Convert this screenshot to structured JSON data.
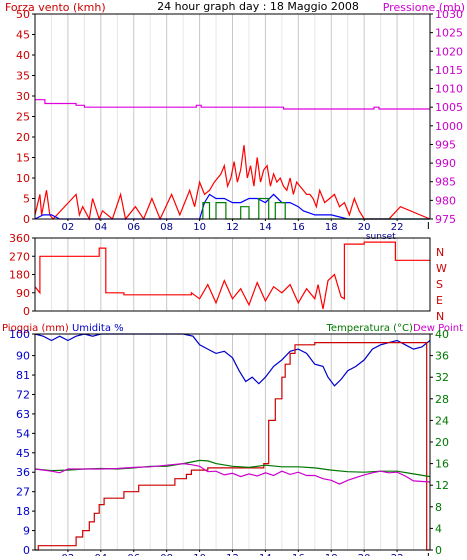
{
  "colors": {
    "background": "#ffffff",
    "frame": "#000000",
    "grid": "#d4d4d4",
    "wind": "#ff0000",
    "wind_avg": "#0000ff",
    "wind_green": "#008000",
    "pressure": "#e000e0",
    "direction": "#ff0000",
    "rain": "#cc0000",
    "humidity": "#0000cc",
    "temperature": "#007700",
    "dewpoint": "#cc00cc",
    "hour_labels": "#000088"
  },
  "header": {
    "left": "Forza vento (kmh)",
    "center": "24 hour graph day : 18 Maggio 2008",
    "right": "Pressione (mb)"
  },
  "x_labels": [
    "02",
    "04",
    "06",
    "08",
    "10",
    "12",
    "14",
    "16",
    "18",
    "20",
    "22"
  ],
  "sunset_label": "sunset",
  "chart_data": [
    {
      "type": "line",
      "title": "24 hour graph day : 18 Maggio 2008",
      "x_unit": "hour",
      "xlim": [
        0,
        24
      ],
      "left_axis": {
        "label": "Forza vento (kmh)",
        "ticks": [
          0,
          5,
          10,
          15,
          20,
          25,
          30,
          35,
          40,
          45,
          50
        ],
        "ylim": [
          0,
          50
        ]
      },
      "right_axis": {
        "label": "Pressione (mb)",
        "ticks": [
          975,
          980,
          985,
          990,
          995,
          1000,
          1005,
          1010,
          1015,
          1020,
          1025,
          1030
        ],
        "ylim": [
          975,
          1030
        ]
      },
      "series": [
        {
          "axis": "right",
          "color": "#e000e0",
          "x": [
            0,
            0.6,
            0.6,
            2.5,
            2.5,
            3,
            3,
            9.8,
            9.8,
            10.1,
            10.1,
            15.1,
            15.1,
            20.6,
            20.6,
            20.9,
            20.9,
            24
          ],
          "y": [
            1007,
            1007,
            1006,
            1006,
            1005.5,
            1005.5,
            1005,
            1005,
            1005.5,
            1005.5,
            1005,
            1005,
            1004.5,
            1004.5,
            1005,
            1005,
            1004.5,
            1004.5
          ]
        },
        {
          "axis": "left",
          "color": "#ff0000",
          "x": [
            0,
            0.3,
            0.4,
            0.5,
            0.7,
            0.9,
            1.1,
            2.5,
            2.7,
            2.9,
            3.3,
            3.5,
            3.9,
            4.1,
            4.7,
            5.2,
            5.5,
            6.1,
            6.6,
            7.1,
            7.6,
            8.3,
            8.8,
            9.4,
            9.7,
            10.0,
            10.3,
            10.6,
            10.9,
            11.1,
            11.3,
            11.5,
            11.7,
            11.9,
            12.1,
            12.3,
            12.5,
            12.7,
            12.9,
            13.1,
            13.3,
            13.5,
            13.7,
            13.9,
            14.1,
            14.3,
            14.5,
            14.7,
            14.9,
            15.1,
            15.3,
            15.5,
            15.7,
            15.9,
            16.1,
            16.3,
            16.5,
            16.7,
            16.9,
            17.1,
            17.3,
            17.6,
            17.9,
            18.2,
            18.5,
            18.8,
            19.1,
            19.4,
            19.7,
            20.0,
            21.5,
            22.2,
            24
          ],
          "y": [
            1,
            6,
            1,
            3,
            7,
            1,
            0,
            6,
            1,
            3,
            0,
            5,
            0,
            2,
            0,
            6,
            0,
            3,
            0,
            5,
            0,
            6,
            1,
            7,
            3,
            9,
            6,
            7,
            9,
            10,
            11,
            13,
            8,
            10,
            14,
            9,
            12,
            18,
            10,
            13,
            8,
            15,
            9,
            12,
            13,
            8,
            11,
            9,
            10,
            8,
            7,
            10,
            6,
            9,
            8,
            7,
            6,
            6,
            5,
            3,
            7,
            4,
            5,
            6,
            3,
            4,
            1,
            5,
            2,
            0,
            0,
            3,
            0
          ]
        },
        {
          "axis": "left",
          "color": "#0000ff",
          "x": [
            0,
            0.5,
            1,
            1.5,
            10,
            10.3,
            10.6,
            11,
            11.5,
            12,
            12.5,
            13,
            13.5,
            14,
            14.5,
            15,
            15.5,
            16,
            16.3,
            17,
            18,
            19,
            20,
            24
          ],
          "y": [
            0,
            1,
            1,
            0,
            0,
            4,
            6,
            5,
            5,
            4,
            4,
            5,
            5,
            4,
            6,
            4,
            4,
            3,
            2,
            1,
            1,
            0,
            0,
            0
          ]
        },
        {
          "axis": "left",
          "color": "#008000",
          "x": [
            10,
            10.2,
            10.2,
            10.6,
            10.6,
            11,
            11,
            11.6,
            11.6,
            12.5,
            12.5,
            13,
            13,
            13.6,
            13.6,
            14.2,
            14.2,
            14.6,
            14.6,
            15.2,
            15.2,
            16,
            16,
            24
          ],
          "y": [
            0,
            0,
            4,
            4,
            0,
            0,
            4,
            4,
            0,
            0,
            3,
            3,
            0,
            0,
            5,
            5,
            0,
            0,
            4,
            4,
            0,
            0,
            0,
            0
          ]
        }
      ]
    },
    {
      "type": "line",
      "title": "",
      "x_unit": "hour",
      "xlim": [
        0,
        24
      ],
      "left_axis": {
        "label": "",
        "ticks": [
          0,
          90,
          180,
          270,
          360
        ],
        "ylim": [
          0,
          360
        ]
      },
      "right_labels": [
        "N",
        "W",
        "S",
        "E",
        "N"
      ],
      "series": [
        {
          "color": "#ff0000",
          "x": [
            0,
            0.3,
            0.3,
            3.9,
            3.9,
            4.3,
            4.3,
            5.4,
            5.4,
            9.5,
            9.5,
            10,
            10.5,
            11,
            11.5,
            12,
            12.5,
            13,
            13.5,
            14,
            14.5,
            15,
            15.5,
            16,
            16.5,
            17,
            17.2,
            17.5,
            17.8,
            18.2,
            18.6,
            18.8,
            18.8,
            20,
            20,
            21.9,
            21.9,
            24
          ],
          "y": [
            120,
            90,
            270,
            270,
            310,
            310,
            90,
            90,
            80,
            80,
            90,
            60,
            130,
            40,
            150,
            60,
            110,
            30,
            140,
            50,
            120,
            90,
            130,
            40,
            110,
            60,
            130,
            10,
            150,
            180,
            70,
            60,
            330,
            330,
            340,
            340,
            250,
            250
          ]
        }
      ]
    },
    {
      "type": "line",
      "title": "",
      "x_unit": "hour",
      "xlim": [
        0,
        24
      ],
      "left_axis": {
        "label": "Pioggia (mm) Umidita %",
        "ticks": [
          0,
          9,
          18,
          27,
          36,
          45,
          54,
          63,
          72,
          81,
          90,
          100
        ],
        "ylim": [
          0,
          100
        ]
      },
      "right_axis": {
        "label": "Temperatura (°C)Dew Point",
        "ticks": [
          0,
          4,
          8,
          12,
          16,
          20,
          24,
          28,
          32,
          36,
          40
        ],
        "ylim": [
          0,
          40
        ]
      },
      "series": [
        {
          "name": "Umidita %",
          "axis": "left",
          "color": "#0000cc",
          "x": [
            0,
            0.5,
            1,
            1.5,
            2,
            2.5,
            3,
            3.5,
            4,
            4.5,
            5,
            6,
            7,
            8,
            9,
            9.6,
            10,
            10.5,
            11,
            11.5,
            12,
            12.4,
            12.8,
            13.2,
            13.6,
            14,
            14.5,
            15,
            15.5,
            16,
            16.5,
            17,
            17.5,
            17.8,
            18.2,
            18.6,
            19,
            19.5,
            20,
            20.5,
            21,
            21.5,
            22,
            22.5,
            23,
            23.5,
            24
          ],
          "y": [
            100,
            99,
            97,
            99,
            97,
            99,
            100,
            99,
            100,
            100,
            100,
            100,
            100,
            100,
            100,
            99,
            95,
            93,
            91,
            92,
            89,
            83,
            78,
            80,
            77,
            80,
            85,
            88,
            92,
            93,
            91,
            86,
            85,
            80,
            76,
            79,
            83,
            85,
            88,
            93,
            95,
            96,
            97,
            95,
            93,
            94,
            97
          ]
        },
        {
          "name": "Pioggia (mm)",
          "axis": "left",
          "color": "#cc0000",
          "x": [
            0,
            0.2,
            0.2,
            2.5,
            2.5,
            2.9,
            2.9,
            3.3,
            3.3,
            3.6,
            3.6,
            3.9,
            3.9,
            4.2,
            4.2,
            5.4,
            5.4,
            6.3,
            6.3,
            8.5,
            8.5,
            9.2,
            9.2,
            9.5,
            9.5,
            10.5,
            10.5,
            13.9,
            13.9,
            14.2,
            14.2,
            14.6,
            14.6,
            15,
            15,
            15.2,
            15.2,
            15.5,
            15.5,
            15.8,
            15.8,
            17,
            17,
            23.8,
            23.8,
            24
          ],
          "y": [
            0,
            0,
            2,
            2,
            6,
            6,
            9,
            9,
            13,
            13,
            17,
            17,
            21,
            21,
            24,
            24,
            27,
            27,
            30,
            30,
            33,
            33,
            35,
            35,
            37,
            37,
            38,
            38,
            40,
            40,
            60,
            60,
            70,
            70,
            80,
            80,
            86,
            86,
            91,
            91,
            95,
            95,
            96,
            96,
            0,
            0
          ]
        },
        {
          "name": "Temperatura (°C)",
          "axis": "right",
          "color": "#007700",
          "x": [
            0,
            1,
            2,
            3,
            4,
            5,
            6,
            7,
            8,
            9,
            9.5,
            10,
            10.5,
            11,
            12,
            13,
            14,
            15,
            16,
            17,
            18,
            19,
            20,
            21,
            22,
            23,
            24
          ],
          "y": [
            15,
            14.7,
            14.8,
            15,
            15.1,
            15,
            15.2,
            15.5,
            15.5,
            16,
            16.3,
            16.6,
            16.5,
            16,
            15.5,
            15.3,
            15.7,
            15.4,
            15.4,
            15.2,
            14.8,
            14.5,
            14.4,
            14.6,
            14.6,
            14.1,
            13.6
          ]
        },
        {
          "name": "Dew Point",
          "axis": "right",
          "color": "#cc00cc",
          "x": [
            0,
            1,
            1.5,
            2,
            3,
            4,
            5,
            6,
            7,
            8,
            9,
            9.5,
            10,
            10.5,
            11,
            11.5,
            12,
            12.5,
            13,
            13.5,
            14,
            14.5,
            15,
            15.5,
            16,
            16.5,
            17,
            17.5,
            18,
            18.5,
            19,
            19.5,
            20,
            20.5,
            21,
            21.5,
            22,
            22.5,
            23,
            24
          ],
          "y": [
            15,
            14.6,
            14.3,
            15,
            15,
            15,
            15.1,
            15.3,
            15.4,
            15.7,
            16,
            15.8,
            15.5,
            14.5,
            14.6,
            13.9,
            14.2,
            13.6,
            14.1,
            13.7,
            14.3,
            13.8,
            14.6,
            14,
            14.4,
            13.8,
            13.8,
            13.2,
            12.9,
            12.2,
            12.9,
            13.4,
            13.9,
            14.3,
            14.6,
            14.3,
            14.4,
            13.7,
            12.8,
            12.6
          ]
        }
      ]
    }
  ]
}
